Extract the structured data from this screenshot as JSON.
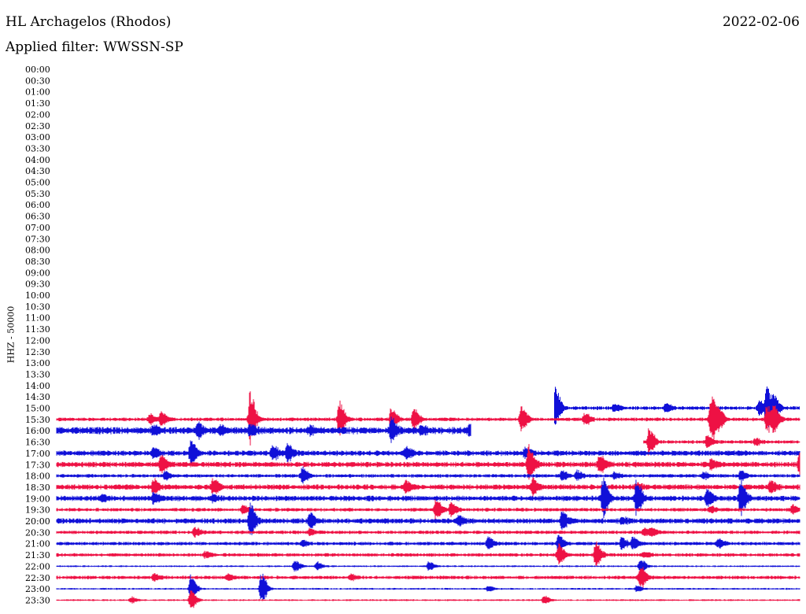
{
  "header": {
    "station": "HL Archagelos (Rhodos)",
    "date": "2022-02-06",
    "filter": "Applied filter: WWSSN-SP"
  },
  "axis": {
    "channel_label": "HHZ - 50000"
  },
  "colors": {
    "trace_a": "#1010d8",
    "trace_b": "#ee1144"
  },
  "chart_data": {
    "type": "line",
    "ylabel": "HHZ - 50000",
    "time_labels": [
      "00:00",
      "00:30",
      "01:00",
      "01:30",
      "02:00",
      "02:30",
      "03:00",
      "03:30",
      "04:00",
      "04:30",
      "05:00",
      "05:30",
      "06:00",
      "06:30",
      "07:00",
      "07:30",
      "08:00",
      "08:30",
      "09:00",
      "09:30",
      "10:00",
      "10:30",
      "11:00",
      "11:30",
      "12:00",
      "12:30",
      "13:00",
      "13:30",
      "14:00",
      "14:30",
      "15:00",
      "15:30",
      "16:00",
      "16:30",
      "17:00",
      "17:30",
      "18:00",
      "18:30",
      "19:00",
      "19:30",
      "20:00",
      "20:30",
      "21:00",
      "21:30",
      "22:00",
      "22:30",
      "23:00",
      "23:30"
    ],
    "traces": [
      {
        "row": "15:00",
        "color": "blue",
        "start": 0.67,
        "end": 1.0,
        "noise": 2,
        "events": [
          [
            0.67,
            28
          ],
          [
            0.75,
            4
          ],
          [
            0.82,
            6
          ],
          [
            0.945,
            10
          ],
          [
            0.955,
            26
          ],
          [
            0.965,
            14
          ]
        ]
      },
      {
        "row": "15:30",
        "color": "red",
        "start": 0.0,
        "end": 1.0,
        "noise": 2,
        "events": [
          [
            0.125,
            6
          ],
          [
            0.14,
            10
          ],
          [
            0.26,
            36
          ],
          [
            0.38,
            24
          ],
          [
            0.45,
            14
          ],
          [
            0.48,
            14
          ],
          [
            0.625,
            16
          ],
          [
            0.71,
            8
          ],
          [
            0.88,
            34
          ],
          [
            0.89,
            14
          ],
          [
            0.955,
            18
          ],
          [
            0.965,
            16
          ]
        ]
      },
      {
        "row": "16:00",
        "color": "blue",
        "start": 0.0,
        "end": 0.558,
        "noise": 4,
        "events": [
          [
            0.13,
            6
          ],
          [
            0.19,
            8
          ],
          [
            0.22,
            6
          ],
          [
            0.26,
            6
          ],
          [
            0.34,
            4
          ],
          [
            0.45,
            14
          ],
          [
            0.49,
            6
          ],
          [
            0.555,
            6
          ]
        ]
      },
      {
        "row": "16:30",
        "color": "red",
        "start": 0.79,
        "end": 1.0,
        "noise": 2,
        "events": [
          [
            0.797,
            18
          ],
          [
            0.875,
            8
          ],
          [
            0.94,
            4
          ]
        ]
      },
      {
        "row": "17:00",
        "color": "blue",
        "start": 0.0,
        "end": 1.0,
        "noise": 3,
        "events": [
          [
            0.13,
            6
          ],
          [
            0.18,
            16
          ],
          [
            0.29,
            10
          ],
          [
            0.31,
            10
          ],
          [
            0.47,
            8
          ],
          [
            0.63,
            6
          ]
        ]
      },
      {
        "row": "17:30",
        "color": "red",
        "start": 0.0,
        "end": 1.0,
        "noise": 3,
        "events": [
          [
            0.14,
            12
          ],
          [
            0.635,
            26
          ],
          [
            0.73,
            12
          ],
          [
            0.88,
            6
          ],
          [
            1.0,
            18
          ]
        ]
      },
      {
        "row": "18:00",
        "color": "blue",
        "start": 0.0,
        "end": 1.0,
        "noise": 2,
        "events": [
          [
            0.145,
            6
          ],
          [
            0.33,
            10
          ],
          [
            0.68,
            6
          ],
          [
            0.7,
            6
          ],
          [
            0.75,
            4
          ],
          [
            0.87,
            4
          ],
          [
            0.92,
            6
          ]
        ]
      },
      {
        "row": "18:30",
        "color": "red",
        "start": 0.0,
        "end": 1.0,
        "noise": 3,
        "events": [
          [
            0.13,
            10
          ],
          [
            0.21,
            10
          ],
          [
            0.47,
            8
          ],
          [
            0.64,
            10
          ],
          [
            0.78,
            4
          ],
          [
            0.96,
            8
          ]
        ]
      },
      {
        "row": "19:00",
        "color": "blue",
        "start": 0.0,
        "end": 1.0,
        "noise": 3,
        "events": [
          [
            0.06,
            4
          ],
          [
            0.13,
            6
          ],
          [
            0.21,
            4
          ],
          [
            0.735,
            26
          ],
          [
            0.78,
            22
          ],
          [
            0.875,
            12
          ],
          [
            0.92,
            26
          ]
        ]
      },
      {
        "row": "19:30",
        "color": "red",
        "start": 0.0,
        "end": 1.0,
        "noise": 2,
        "events": [
          [
            0.25,
            6
          ],
          [
            0.51,
            14
          ],
          [
            0.53,
            10
          ],
          [
            0.88,
            4
          ],
          [
            0.99,
            6
          ]
        ]
      },
      {
        "row": "20:00",
        "color": "blue",
        "start": 0.0,
        "end": 1.0,
        "noise": 3,
        "events": [
          [
            0.26,
            22
          ],
          [
            0.34,
            10
          ],
          [
            0.54,
            6
          ],
          [
            0.68,
            12
          ],
          [
            0.76,
            4
          ]
        ]
      },
      {
        "row": "20:30",
        "color": "red",
        "start": 0.0,
        "end": 1.0,
        "noise": 2,
        "events": [
          [
            0.185,
            6
          ],
          [
            0.34,
            4
          ],
          [
            0.79,
            6
          ],
          [
            0.8,
            4
          ]
        ]
      },
      {
        "row": "21:00",
        "color": "blue",
        "start": 0.0,
        "end": 1.0,
        "noise": 2,
        "events": [
          [
            0.33,
            4
          ],
          [
            0.58,
            8
          ],
          [
            0.675,
            10
          ],
          [
            0.76,
            8
          ],
          [
            0.775,
            8
          ],
          [
            0.89,
            6
          ]
        ]
      },
      {
        "row": "21:30",
        "color": "red",
        "start": 0.0,
        "end": 1.0,
        "noise": 2,
        "events": [
          [
            0.2,
            4
          ],
          [
            0.675,
            14
          ],
          [
            0.725,
            16
          ],
          [
            0.79,
            4
          ]
        ]
      },
      {
        "row": "22:00",
        "color": "blue",
        "start": 0.0,
        "end": 1.0,
        "noise": 1,
        "events": [
          [
            0.32,
            8
          ],
          [
            0.35,
            6
          ],
          [
            0.5,
            6
          ],
          [
            0.785,
            10
          ]
        ]
      },
      {
        "row": "22:30",
        "color": "red",
        "start": 0.0,
        "end": 1.0,
        "noise": 2,
        "events": [
          [
            0.13,
            4
          ],
          [
            0.23,
            4
          ],
          [
            0.395,
            4
          ],
          [
            0.785,
            16
          ]
        ]
      },
      {
        "row": "23:00",
        "color": "blue",
        "start": 0.0,
        "end": 1.0,
        "noise": 1,
        "events": [
          [
            0.18,
            20
          ],
          [
            0.275,
            20
          ],
          [
            0.58,
            4
          ],
          [
            0.78,
            4
          ]
        ]
      },
      {
        "row": "23:30",
        "color": "red",
        "start": 0.0,
        "end": 1.0,
        "noise": 1,
        "events": [
          [
            0.1,
            4
          ],
          [
            0.18,
            14
          ],
          [
            0.655,
            6
          ]
        ]
      }
    ]
  }
}
